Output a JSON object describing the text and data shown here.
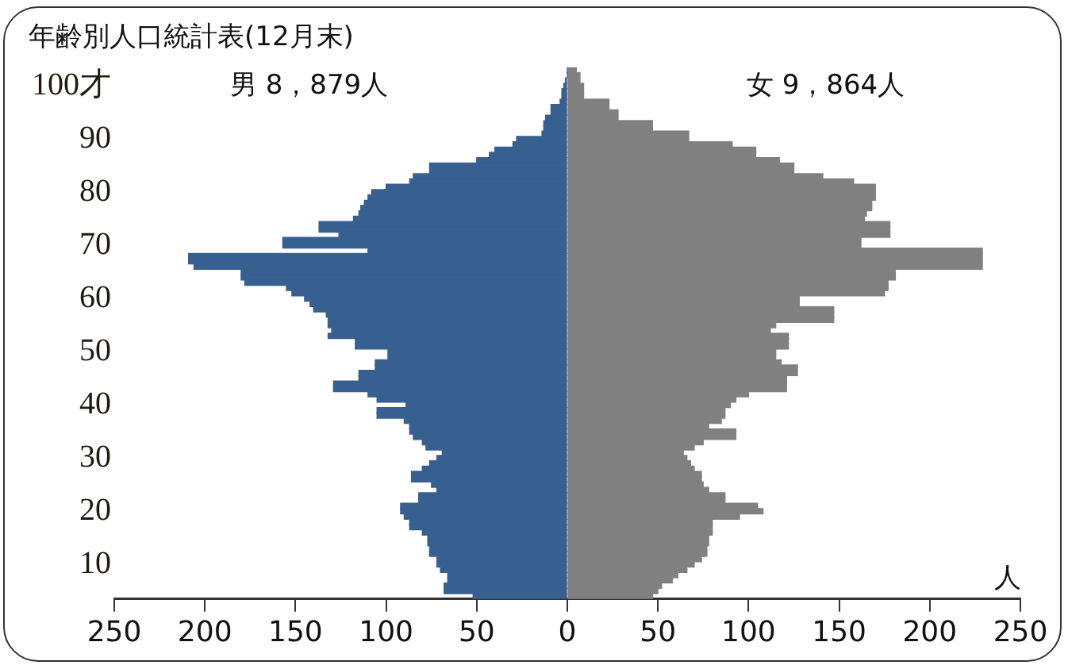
{
  "chart_data": {
    "type": "bar",
    "orientation": "horizontal",
    "stacked": true,
    "title": "年齢別人口統計表(12月末)",
    "xlabel": "人",
    "legend": false,
    "grid": false,
    "categories": [
      null,
      null,
      null,
      "100才",
      null,
      null,
      null,
      null,
      null,
      null,
      null,
      null,
      null,
      "90",
      null,
      null,
      null,
      null,
      null,
      null,
      null,
      null,
      null,
      "80",
      null,
      null,
      null,
      null,
      null,
      null,
      null,
      null,
      null,
      "70",
      null,
      null,
      null,
      null,
      null,
      null,
      null,
      null,
      null,
      "60",
      null,
      null,
      null,
      null,
      null,
      null,
      null,
      null,
      null,
      "50",
      null,
      null,
      null,
      null,
      null,
      null,
      null,
      null,
      null,
      "40",
      null,
      null,
      null,
      null,
      null,
      null,
      null,
      null,
      null,
      "30",
      null,
      null,
      null,
      null,
      null,
      null,
      null,
      null,
      null,
      "20",
      null,
      null,
      null,
      null,
      null,
      null,
      null,
      null,
      null,
      "10",
      null,
      null,
      null,
      null,
      null,
      null
    ],
    "xlim": [
      -250,
      250
    ],
    "xticks": [
      {
        "value": -250,
        "label": "250"
      },
      {
        "value": -200,
        "label": "200"
      },
      {
        "value": -150,
        "label": "150"
      },
      {
        "value": -100,
        "label": "100"
      },
      {
        "value": -50,
        "label": "50"
      },
      0,
      50,
      100,
      150,
      200,
      250
    ],
    "series": [
      {
        "name": "男 8，879人",
        "color": "#375f8f",
        "values": [
          0,
          0,
          -1,
          -2,
          -3,
          -3,
          -4,
          -9,
          -9,
          -12,
          -13,
          -13,
          -14,
          -28,
          -30,
          -40,
          -43,
          -50,
          -76,
          -76,
          -85,
          -87,
          -100,
          -108,
          -110,
          -112,
          -114,
          -115,
          -118,
          -137,
          -137,
          -126,
          -157,
          -157,
          -110,
          -209,
          -209,
          -206,
          -180,
          -180,
          -178,
          -155,
          -152,
          -145,
          -142,
          -140,
          -133,
          -132,
          -132,
          -130,
          -132,
          -117,
          -117,
          -99,
          -99,
          -106,
          -106,
          -115,
          -115,
          -129,
          -129,
          -110,
          -105,
          -89,
          -105,
          -105,
          -90,
          -87,
          -87,
          -85,
          -80,
          -78,
          -69,
          -72,
          -76,
          -80,
          -86,
          -86,
          -75,
          -72,
          -82,
          -82,
          -92,
          -92,
          -90,
          -87,
          -87,
          -80,
          -77,
          -77,
          -76,
          -76,
          -72,
          -72,
          -70,
          -66,
          -66,
          -68,
          -68,
          -52
        ]
      },
      {
        "name": "女 9，864人",
        "color": "#808080",
        "values": [
          5,
          7,
          7,
          9,
          9,
          9,
          23,
          23,
          28,
          28,
          47,
          47,
          67,
          67,
          91,
          104,
          104,
          117,
          125,
          125,
          141,
          158,
          170,
          170,
          170,
          168,
          168,
          165,
          164,
          178,
          178,
          178,
          162,
          162,
          229,
          229,
          229,
          229,
          181,
          181,
          177,
          177,
          175,
          128,
          128,
          147,
          147,
          147,
          115,
          112,
          122,
          122,
          122,
          115,
          115,
          118,
          127,
          127,
          121,
          121,
          121,
          100,
          93,
          90,
          87,
          87,
          85,
          78,
          93,
          93,
          75,
          70,
          64,
          66,
          68,
          70,
          74,
          74,
          75,
          78,
          87,
          87,
          105,
          108,
          95,
          80,
          80,
          80,
          78,
          78,
          77,
          77,
          74,
          70,
          66,
          61,
          58,
          52,
          50,
          47
        ]
      }
    ]
  }
}
